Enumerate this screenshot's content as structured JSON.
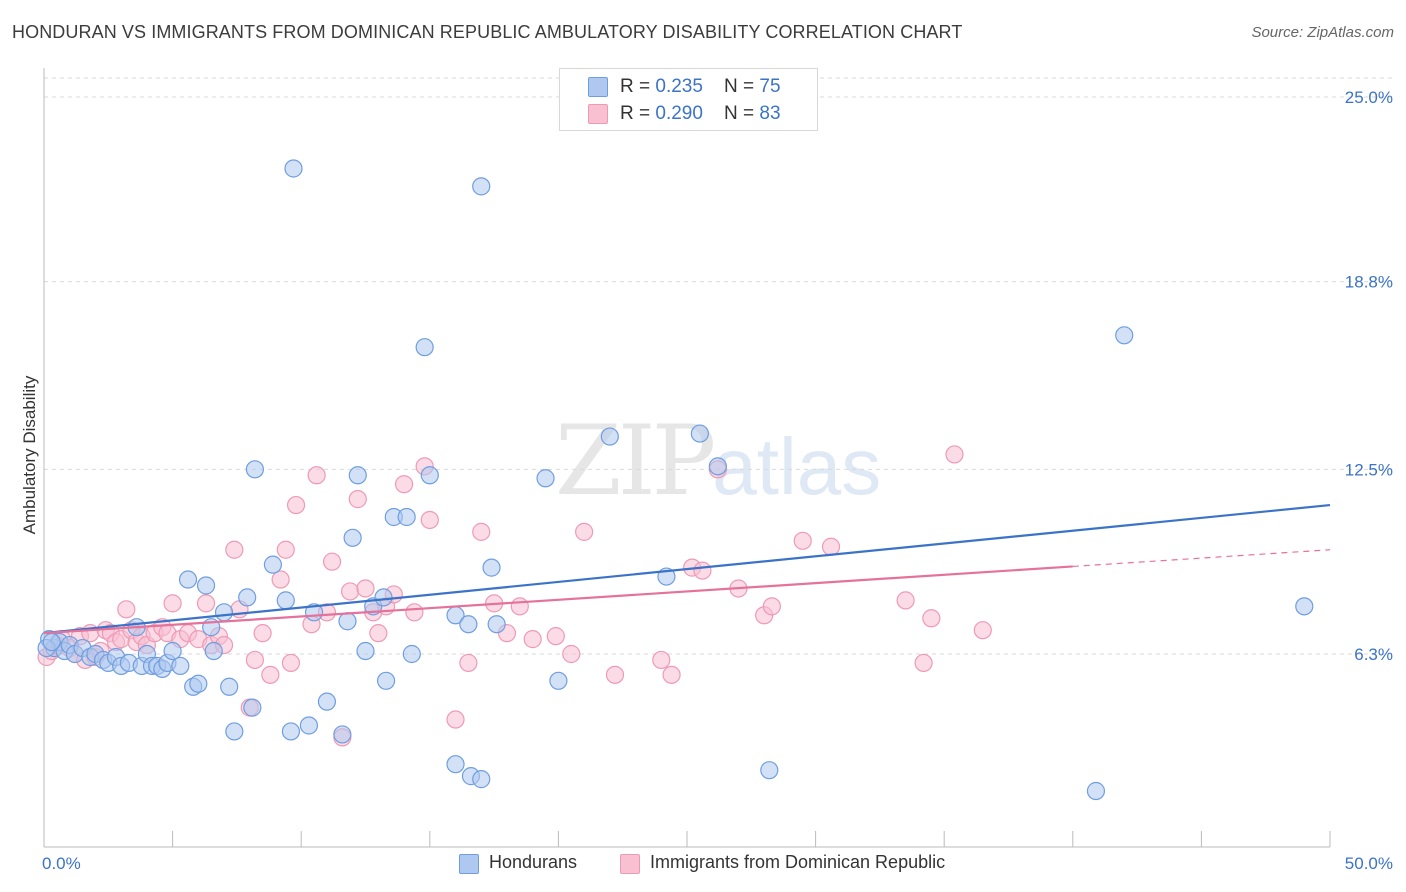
{
  "title": "HONDURAN VS IMMIGRANTS FROM DOMINICAN REPUBLIC AMBULATORY DISABILITY CORRELATION CHART",
  "source": "Source: ZipAtlas.com",
  "watermark": {
    "zip": "ZIP",
    "atlas": "atlas"
  },
  "colors": {
    "blue": "#3b73c8",
    "blue_fill": "#aec8ef",
    "blue_stroke": "#6f9ee0",
    "pink": "#e5729a",
    "pink_fill": "#f8c0d1",
    "pink_stroke": "#ef9ab5",
    "grid": "#d9d9d9",
    "axis_text": "#3b73c8"
  },
  "legend": {
    "rows": [
      {
        "r_label": "R = ",
        "r_value": "0.235",
        "n_label": "N = ",
        "n_value": "75"
      },
      {
        "r_label": "R = ",
        "r_value": "0.290",
        "n_label": "N = ",
        "n_value": "83"
      }
    ]
  },
  "bottom_legend": {
    "hondurans": "Hondurans",
    "dominican": "Immigrants from Dominican Republic"
  },
  "chart_data": {
    "type": "scatter",
    "title": "HONDURAN VS IMMIGRANTS FROM DOMINICAN REPUBLIC AMBULATORY DISABILITY CORRELATION CHART",
    "xlabel": "",
    "ylabel": "Ambulatory Disability",
    "xlim": [
      0,
      50
    ],
    "ylim": [
      0,
      26
    ],
    "x_tick_labels": [
      "0.0%",
      "50.0%"
    ],
    "y_ticks": [
      6.3,
      12.5,
      18.8,
      25.0
    ],
    "y_tick_labels": [
      "6.3%",
      "12.5%",
      "18.8%",
      "25.0%"
    ],
    "series": [
      {
        "name": "Hondurans",
        "r": 0.235,
        "n": 75,
        "trend": {
          "x": [
            0,
            50
          ],
          "y": [
            7.0,
            11.3
          ],
          "dashed_from": null
        },
        "points": [
          [
            0.2,
            6.8
          ],
          [
            0.4,
            6.5
          ],
          [
            0.6,
            6.7
          ],
          [
            0.8,
            6.4
          ],
          [
            1.0,
            6.6
          ],
          [
            1.2,
            6.3
          ],
          [
            1.5,
            6.5
          ],
          [
            1.8,
            6.2
          ],
          [
            2.0,
            6.3
          ],
          [
            2.3,
            6.1
          ],
          [
            2.5,
            6.0
          ],
          [
            2.8,
            6.2
          ],
          [
            3.0,
            5.9
          ],
          [
            3.3,
            6.0
          ],
          [
            3.6,
            7.2
          ],
          [
            3.8,
            5.9
          ],
          [
            4.0,
            6.3
          ],
          [
            4.2,
            5.9
          ],
          [
            4.4,
            5.9
          ],
          [
            4.6,
            5.8
          ],
          [
            4.8,
            6.0
          ],
          [
            5.0,
            6.4
          ],
          [
            5.3,
            5.9
          ],
          [
            5.6,
            8.8
          ],
          [
            5.8,
            5.2
          ],
          [
            6.0,
            5.3
          ],
          [
            6.3,
            8.6
          ],
          [
            6.5,
            7.2
          ],
          [
            6.6,
            6.4
          ],
          [
            7.0,
            7.7
          ],
          [
            7.2,
            5.2
          ],
          [
            7.4,
            3.7
          ],
          [
            7.9,
            8.2
          ],
          [
            8.1,
            4.5
          ],
          [
            8.2,
            12.5
          ],
          [
            8.9,
            9.3
          ],
          [
            9.4,
            8.1
          ],
          [
            9.6,
            3.7
          ],
          [
            9.7,
            22.6
          ],
          [
            10.3,
            3.9
          ],
          [
            10.5,
            7.7
          ],
          [
            11.0,
            4.7
          ],
          [
            11.6,
            3.6
          ],
          [
            11.8,
            7.4
          ],
          [
            12.0,
            10.2
          ],
          [
            12.2,
            12.3
          ],
          [
            12.5,
            6.4
          ],
          [
            12.8,
            7.9
          ],
          [
            13.2,
            8.2
          ],
          [
            13.3,
            5.4
          ],
          [
            13.6,
            10.9
          ],
          [
            14.1,
            10.9
          ],
          [
            14.3,
            6.3
          ],
          [
            14.8,
            16.6
          ],
          [
            15.0,
            12.3
          ],
          [
            16.0,
            7.6
          ],
          [
            16.0,
            2.6
          ],
          [
            16.5,
            7.3
          ],
          [
            16.6,
            2.2
          ],
          [
            17.0,
            2.1
          ],
          [
            17.0,
            22.0
          ],
          [
            17.4,
            9.2
          ],
          [
            17.6,
            7.3
          ],
          [
            19.5,
            12.2
          ],
          [
            20.0,
            5.4
          ],
          [
            22.0,
            13.6
          ],
          [
            24.2,
            8.9
          ],
          [
            25.5,
            13.7
          ],
          [
            26.2,
            12.6
          ],
          [
            28.2,
            2.4
          ],
          [
            40.9,
            1.7
          ],
          [
            42.0,
            17.0
          ],
          [
            49.0,
            7.9
          ],
          [
            0.1,
            6.5
          ],
          [
            0.3,
            6.7
          ]
        ]
      },
      {
        "name": "Immigrants from Dominican Republic",
        "r": 0.29,
        "n": 83,
        "trend": {
          "x": [
            0,
            50
          ],
          "y": [
            7.0,
            9.8
          ],
          "dashed_from": 40
        },
        "points": [
          [
            0.1,
            6.2
          ],
          [
            0.3,
            6.4
          ],
          [
            0.5,
            6.6
          ],
          [
            0.7,
            6.8
          ],
          [
            1.0,
            6.5
          ],
          [
            1.2,
            6.3
          ],
          [
            1.4,
            6.9
          ],
          [
            1.6,
            6.1
          ],
          [
            1.8,
            7.0
          ],
          [
            2.0,
            6.2
          ],
          [
            2.2,
            6.4
          ],
          [
            2.4,
            7.1
          ],
          [
            2.6,
            7.0
          ],
          [
            2.8,
            6.7
          ],
          [
            3.0,
            6.8
          ],
          [
            3.2,
            7.8
          ],
          [
            3.4,
            7.1
          ],
          [
            3.6,
            6.7
          ],
          [
            3.8,
            6.9
          ],
          [
            4.0,
            6.6
          ],
          [
            4.3,
            7.0
          ],
          [
            4.6,
            7.2
          ],
          [
            4.8,
            7.0
          ],
          [
            5.0,
            8.0
          ],
          [
            5.3,
            6.8
          ],
          [
            5.6,
            7.0
          ],
          [
            6.0,
            6.8
          ],
          [
            6.3,
            8.0
          ],
          [
            6.5,
            6.6
          ],
          [
            6.8,
            6.9
          ],
          [
            7.0,
            6.6
          ],
          [
            7.4,
            9.8
          ],
          [
            7.6,
            7.8
          ],
          [
            8.0,
            4.5
          ],
          [
            8.2,
            6.1
          ],
          [
            8.5,
            7.0
          ],
          [
            8.8,
            5.6
          ],
          [
            9.2,
            8.8
          ],
          [
            9.4,
            9.8
          ],
          [
            9.6,
            6.0
          ],
          [
            9.8,
            11.3
          ],
          [
            10.4,
            7.3
          ],
          [
            10.6,
            12.3
          ],
          [
            11.0,
            7.7
          ],
          [
            11.2,
            9.4
          ],
          [
            11.6,
            3.5
          ],
          [
            11.9,
            8.4
          ],
          [
            12.2,
            11.5
          ],
          [
            12.5,
            8.5
          ],
          [
            12.8,
            7.7
          ],
          [
            13.0,
            7.0
          ],
          [
            13.3,
            7.9
          ],
          [
            13.6,
            8.3
          ],
          [
            14.0,
            12.0
          ],
          [
            14.4,
            7.7
          ],
          [
            14.8,
            12.6
          ],
          [
            15.0,
            10.8
          ],
          [
            16.0,
            4.1
          ],
          [
            16.5,
            6.0
          ],
          [
            17.0,
            10.4
          ],
          [
            17.5,
            8.0
          ],
          [
            18.0,
            7.0
          ],
          [
            18.5,
            7.9
          ],
          [
            19.0,
            6.8
          ],
          [
            19.9,
            6.9
          ],
          [
            20.5,
            6.3
          ],
          [
            21.0,
            10.4
          ],
          [
            22.2,
            5.6
          ],
          [
            24.0,
            6.1
          ],
          [
            24.4,
            5.6
          ],
          [
            25.2,
            9.2
          ],
          [
            25.6,
            9.1
          ],
          [
            27.0,
            8.5
          ],
          [
            28.0,
            7.6
          ],
          [
            28.3,
            7.9
          ],
          [
            29.5,
            10.1
          ],
          [
            30.6,
            9.9
          ],
          [
            33.5,
            8.1
          ],
          [
            34.2,
            6.0
          ],
          [
            34.5,
            7.5
          ],
          [
            35.4,
            13.0
          ],
          [
            36.5,
            7.1
          ],
          [
            26.2,
            12.5
          ]
        ]
      }
    ]
  }
}
